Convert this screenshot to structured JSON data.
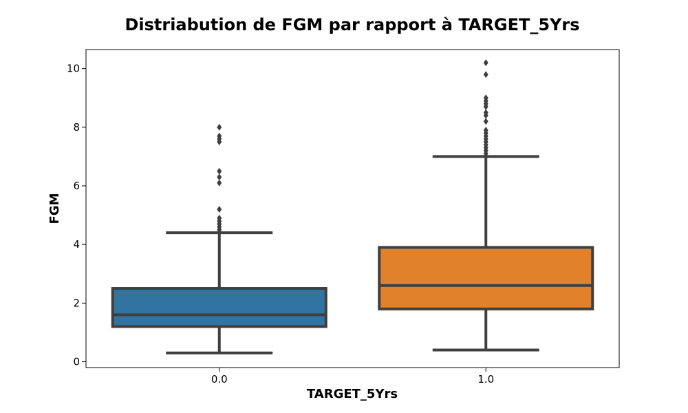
{
  "chart_data": {
    "type": "box",
    "title": "Distriabution de FGM par rapport à TARGET_5Yrs",
    "xlabel": "TARGET_5Yrs",
    "ylabel": "FGM",
    "ylim": [
      -0.2,
      10.65
    ],
    "yticks": [
      0,
      2,
      4,
      6,
      8,
      10
    ],
    "categories": [
      "0.0",
      "1.0"
    ],
    "boxes": [
      {
        "category": "0.0",
        "color": "#3274a1",
        "whisker_low": 0.3,
        "q1": 1.2,
        "median": 1.6,
        "q3": 2.5,
        "whisker_high": 4.4,
        "outliers": [
          4.5,
          4.6,
          4.7,
          4.8,
          4.9,
          5.2,
          6.1,
          6.3,
          6.5,
          7.5,
          7.6,
          7.7,
          8.0
        ]
      },
      {
        "category": "1.0",
        "color": "#e1812c",
        "whisker_low": 0.4,
        "q1": 1.8,
        "median": 2.6,
        "q3": 3.9,
        "whisker_high": 7.0,
        "outliers": [
          7.1,
          7.2,
          7.3,
          7.4,
          7.5,
          7.6,
          7.7,
          7.8,
          7.9,
          8.2,
          8.4,
          8.5,
          8.7,
          8.8,
          8.9,
          9.0,
          9.8,
          10.2
        ]
      }
    ],
    "grid": false,
    "legend": false
  }
}
